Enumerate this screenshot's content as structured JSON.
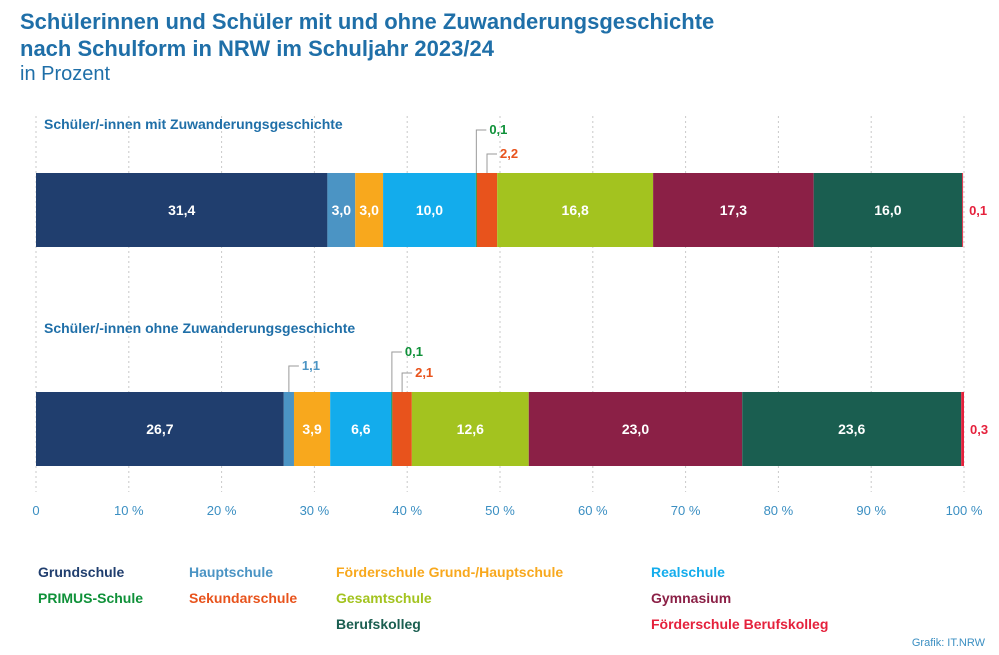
{
  "header": {
    "title_line1": "Schülerinnen und Schüler mit und ohne Zuwanderungsgeschichte",
    "title_line2": "nach Schulform in NRW im Schuljahr 2023/24",
    "subtitle": "in Prozent"
  },
  "credit": "Grafik: IT.NRW",
  "chart_data": {
    "type": "bar",
    "orientation": "horizontal-stacked",
    "xlim": [
      0,
      100
    ],
    "xticks": [
      "0",
      "10 %",
      "20 %",
      "30 %",
      "40 %",
      "50 %",
      "60 %",
      "70 %",
      "80 %",
      "90 %",
      "100 %"
    ],
    "grid": true,
    "legend_position": "bottom",
    "categories": [
      "Grundschule",
      "Hauptschule",
      "Förderschule Grund-/Hauptschule",
      "Realschule",
      "PRIMUS-Schule",
      "Sekundarschule",
      "Gesamtschule",
      "Gymnasium",
      "Berufskolleg",
      "Förderschule Berufskolleg"
    ],
    "colors": [
      "#203e6e",
      "#4b94c4",
      "#f8a81d",
      "#13acec",
      "#0f9139",
      "#e8531c",
      "#a3c31f",
      "#8b2046",
      "#1a5e50",
      "#e5213c"
    ],
    "groups": [
      {
        "name": "Schüler/-innen mit Zuwanderungsgeschichte",
        "values": [
          31.4,
          3.0,
          3.0,
          10.0,
          0.1,
          2.2,
          16.8,
          17.3,
          16.0,
          0.1
        ],
        "labels": [
          "31,4",
          "3,0",
          "3,0",
          "10,0",
          "0,1",
          "2,2",
          "16,8",
          "17,3",
          "16,0",
          "0,1"
        ]
      },
      {
        "name": "Schüler/-innen ohne Zuwanderungsgeschichte",
        "values": [
          26.7,
          1.1,
          3.9,
          6.6,
          0.1,
          2.1,
          12.6,
          23.0,
          23.6,
          0.3
        ],
        "labels": [
          "26,7",
          "1,1",
          "3,9",
          "6,6",
          "0,1",
          "2,1",
          "12,6",
          "23,0",
          "23,6",
          "0,3"
        ]
      }
    ],
    "legend": [
      {
        "label": "Grundschule",
        "color": "#203e6e"
      },
      {
        "label": "Hauptschule",
        "color": "#4b94c4"
      },
      {
        "label": "Förderschule Grund-/Hauptschule",
        "color": "#f8a81d"
      },
      {
        "label": "Realschule",
        "color": "#13acec"
      },
      {
        "label": "PRIMUS-Schule",
        "color": "#0f9139"
      },
      {
        "label": "Sekundarschule",
        "color": "#e8531c"
      },
      {
        "label": "Gesamtschule",
        "color": "#a3c31f"
      },
      {
        "label": "Gymnasium",
        "color": "#8b2046"
      },
      {
        "label": "Berufskolleg",
        "color": "#1a5e50"
      },
      {
        "label": "Förderschule Berufskolleg",
        "color": "#e5213c"
      }
    ]
  }
}
